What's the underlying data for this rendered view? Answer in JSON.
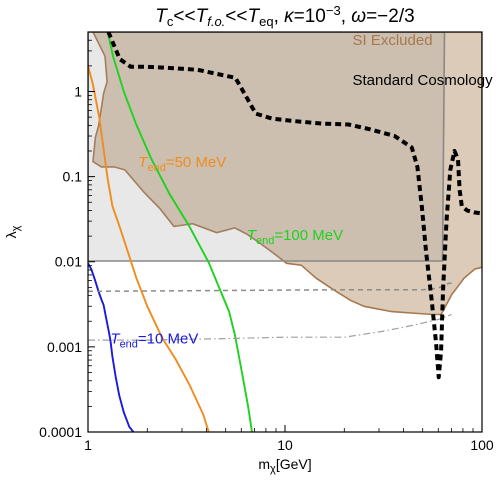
{
  "chart_data": {
    "type": "line",
    "title": "T_c<<T_f.o.<<T_eq, κ=10^-3, ω=−2/3",
    "xlabel": "mχ[GeV]",
    "ylabel": "λχ",
    "xscale": "log",
    "yscale": "log",
    "xlim": [
      1,
      100
    ],
    "ylim": [
      0.0001,
      5
    ],
    "xticks": [
      {
        "value": 1,
        "label": "1"
      },
      {
        "value": 10,
        "label": "10"
      },
      {
        "value": 100,
        "label": "100"
      }
    ],
    "yticks": [
      {
        "value": 1,
        "label": "1"
      },
      {
        "value": 0.1,
        "label": "0.1"
      },
      {
        "value": 0.01,
        "label": "0.01"
      },
      {
        "value": 0.001,
        "label": "0.001"
      },
      {
        "value": 0.0001,
        "label": "0.0001"
      }
    ],
    "regions": [
      {
        "name": "SI Excluded",
        "label": "SI Excluded",
        "label_at": [
          22,
          3.5
        ],
        "color": "#dccbb8",
        "edge_color": "#a6784e",
        "points": [
          [
            1.06,
            5
          ],
          [
            1.22,
            2.6
          ],
          [
            1.25,
            1.3
          ],
          [
            1.2,
            0.95
          ],
          [
            1.17,
            0.64
          ],
          [
            1.13,
            0.39
          ],
          [
            1.09,
            0.29
          ],
          [
            1.06,
            0.15
          ],
          [
            1.17,
            0.13
          ],
          [
            1.36,
            0.13
          ],
          [
            1.54,
            0.12
          ],
          [
            1.93,
            0.065
          ],
          [
            2.32,
            0.042
          ],
          [
            2.73,
            0.026
          ],
          [
            3.4,
            0.028
          ],
          [
            4.5,
            0.022
          ],
          [
            5.56,
            0.025
          ],
          [
            6.43,
            0.021
          ],
          [
            7.33,
            0.017
          ],
          [
            8.6,
            0.013
          ],
          [
            10.2,
            0.0096
          ],
          [
            12.1,
            0.0091
          ],
          [
            14.4,
            0.0064
          ],
          [
            17.6,
            0.0047
          ],
          [
            21.6,
            0.0035
          ],
          [
            25.2,
            0.003
          ],
          [
            29.3,
            0.0028
          ],
          [
            34.8,
            0.0026
          ],
          [
            43.6,
            0.0025
          ],
          [
            56.3,
            0.0024
          ],
          [
            62,
            0.0024
          ],
          [
            70.2,
            0.0041
          ],
          [
            81.1,
            0.0064
          ],
          [
            91.8,
            0.0082
          ],
          [
            100,
            0.0086
          ],
          [
            100,
            5
          ]
        ]
      },
      {
        "name": "Standard Cosmology",
        "label": "Standard Cosmology",
        "label_at": [
          22,
          1.2
        ],
        "color": "rgba(150,150,150,0.22)",
        "edge_color": "#888888",
        "points": [
          [
            1,
            5
          ],
          [
            1,
            0.0102
          ],
          [
            10,
            0.0102
          ],
          [
            63,
            0.0102
          ],
          [
            64.5,
            5
          ]
        ]
      }
    ],
    "series": [
      {
        "name": "T_end=10 MeV",
        "label": "T_end=10 MeV",
        "label_at": [
          1.3,
          0.0011
        ],
        "color": "#1a1adc",
        "style": "solid",
        "points": [
          [
            1,
            0.0096
          ],
          [
            1.04,
            0.0081
          ],
          [
            1.08,
            0.0063
          ],
          [
            1.13,
            0.0045
          ],
          [
            1.17,
            0.0036
          ],
          [
            1.2,
            0.0031
          ],
          [
            1.24,
            0.0021
          ],
          [
            1.27,
            0.0016
          ],
          [
            1.3,
            0.0012
          ],
          [
            1.33,
            0.00077
          ],
          [
            1.38,
            0.00045
          ],
          [
            1.44,
            0.00027
          ],
          [
            1.52,
            0.00017
          ],
          [
            1.62,
            0.000115
          ],
          [
            1.7,
            0.0001
          ]
        ]
      },
      {
        "name": "T_end=50 MeV",
        "label": "T_end=50 MeV",
        "label_at": [
          1.8,
          0.13
        ],
        "color": "#f08c1e",
        "style": "solid",
        "points": [
          [
            1,
            2.0
          ],
          [
            1.06,
            1.2
          ],
          [
            1.14,
            0.5
          ],
          [
            1.2,
            0.21
          ],
          [
            1.26,
            0.092
          ],
          [
            1.33,
            0.045
          ],
          [
            1.43,
            0.028
          ],
          [
            1.57,
            0.0145
          ],
          [
            1.76,
            0.0064
          ],
          [
            2.0,
            0.003
          ],
          [
            2.37,
            0.0013
          ],
          [
            2.78,
            0.00072
          ],
          [
            3.27,
            0.00036
          ],
          [
            3.85,
            0.00016
          ],
          [
            4.1,
            0.0001
          ]
        ]
      },
      {
        "name": "T_end=100 MeV",
        "label": "T_end=100 MeV",
        "label_at": [
          6.4,
          0.018
        ],
        "color": "#1ed21e",
        "style": "solid",
        "points": [
          [
            1.26,
            5
          ],
          [
            1.34,
            2.6
          ],
          [
            1.52,
            1.0
          ],
          [
            1.75,
            0.42
          ],
          [
            2.1,
            0.16
          ],
          [
            2.6,
            0.062
          ],
          [
            3.27,
            0.026
          ],
          [
            4.1,
            0.0098
          ],
          [
            4.55,
            0.0055
          ],
          [
            5.2,
            0.0026
          ],
          [
            5.56,
            0.0014
          ],
          [
            6.0,
            0.00055
          ],
          [
            6.5,
            0.0002
          ],
          [
            6.8,
            0.0001
          ]
        ]
      },
      {
        "name": "Dashed limit (upper)",
        "color": "#8c8c8c",
        "style": "dashed",
        "points": [
          [
            1,
            0.0045
          ],
          [
            5,
            0.0046
          ],
          [
            20,
            0.0047
          ],
          [
            50,
            0.0047
          ],
          [
            60,
            0.0049
          ],
          [
            68,
            0.0056
          ],
          [
            70,
            0.0056
          ]
        ]
      },
      {
        "name": "Dash-dot limit (lower)",
        "color": "#a0a0a0",
        "style": "dashdot",
        "points": [
          [
            1,
            0.0012
          ],
          [
            2,
            0.0012
          ],
          [
            5,
            0.00125
          ],
          [
            10,
            0.0013
          ],
          [
            20,
            0.0013
          ],
          [
            30,
            0.0015
          ],
          [
            40,
            0.0017
          ],
          [
            50,
            0.0019
          ],
          [
            60,
            0.0021
          ],
          [
            70,
            0.0024
          ]
        ]
      },
      {
        "name": "Black dashed boundary",
        "color": "#000000",
        "style": "bold-dashed",
        "points": [
          [
            1.27,
            5
          ],
          [
            1.45,
            2.4
          ],
          [
            1.65,
            1.95
          ],
          [
            2.0,
            1.95
          ],
          [
            2.5,
            1.9
          ],
          [
            3.6,
            1.8
          ],
          [
            5.6,
            1.45
          ],
          [
            6.3,
            0.9
          ],
          [
            7.1,
            0.55
          ],
          [
            8.6,
            0.48
          ],
          [
            11.0,
            0.45
          ],
          [
            15.5,
            0.42
          ],
          [
            21.0,
            0.41
          ],
          [
            27.0,
            0.36
          ],
          [
            36.0,
            0.3
          ],
          [
            44.0,
            0.22
          ],
          [
            47.0,
            0.13
          ],
          [
            49.5,
            0.045
          ],
          [
            52.0,
            0.013
          ],
          [
            55.5,
            0.0036
          ],
          [
            58.5,
            0.0011
          ],
          [
            60.3,
            0.00044
          ],
          [
            62.0,
            0.0009
          ],
          [
            63.5,
            0.0048
          ],
          [
            66.0,
            0.03
          ],
          [
            69.0,
            0.12
          ],
          [
            72.5,
            0.2
          ],
          [
            75.5,
            0.16
          ],
          [
            77.0,
            0.07
          ],
          [
            79.0,
            0.045
          ],
          [
            84.0,
            0.04
          ],
          [
            91.0,
            0.038
          ],
          [
            100,
            0.037
          ]
        ]
      }
    ]
  }
}
